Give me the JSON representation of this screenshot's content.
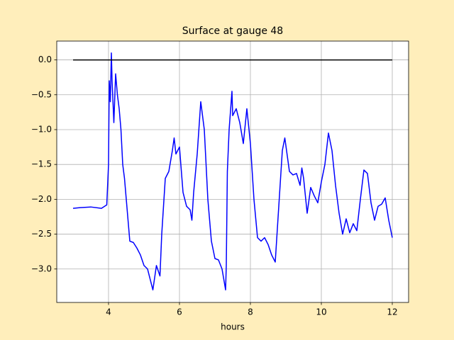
{
  "chart_data": {
    "type": "line",
    "title": "Surface at gauge 48",
    "xlabel": "hours",
    "xlim": [
      2.54,
      12.46
    ],
    "ylim": [
      -3.48,
      0.27
    ],
    "grid": true,
    "xticks": [
      4,
      6,
      8,
      10,
      12
    ],
    "yticks": [
      {
        "value": 0,
        "label": "0.0"
      },
      {
        "value": -0.5,
        "label": "−0.5"
      },
      {
        "value": -1,
        "label": "−1.0"
      },
      {
        "value": -1.5,
        "label": "−1.5"
      },
      {
        "value": -2,
        "label": "−2.0"
      },
      {
        "value": -2.5,
        "label": "−2.5"
      },
      {
        "value": -3,
        "label": "−3.0"
      }
    ],
    "series": [
      {
        "color": "#0000ff",
        "x": [
          3.0,
          3.2,
          3.5,
          3.8,
          3.95,
          4.0,
          4.02,
          4.05,
          4.08,
          4.1,
          4.15,
          4.2,
          4.25,
          4.3,
          4.35,
          4.4,
          4.45,
          4.5,
          4.55,
          4.6,
          4.7,
          4.8,
          4.9,
          5.0,
          5.1,
          5.2,
          5.25,
          5.35,
          5.45,
          5.5,
          5.55,
          5.6,
          5.7,
          5.8,
          5.85,
          5.9,
          6.0,
          6.1,
          6.2,
          6.3,
          6.35,
          6.4,
          6.5,
          6.6,
          6.7,
          6.8,
          6.9,
          7.0,
          7.1,
          7.2,
          7.3,
          7.32,
          7.35,
          7.4,
          7.48,
          7.5,
          7.6,
          7.7,
          7.8,
          7.9,
          8.0,
          8.1,
          8.2,
          8.3,
          8.4,
          8.5,
          8.6,
          8.7,
          8.8,
          8.9,
          8.97,
          9.1,
          9.2,
          9.3,
          9.4,
          9.45,
          9.5,
          9.6,
          9.7,
          9.8,
          9.9,
          10.0,
          10.1,
          10.2,
          10.3,
          10.4,
          10.5,
          10.6,
          10.7,
          10.8,
          10.9,
          11.0,
          11.1,
          11.2,
          11.3,
          11.4,
          11.5,
          11.6,
          11.7,
          11.8,
          11.9,
          12.0
        ],
        "values": [
          -2.13,
          -2.12,
          -2.11,
          -2.13,
          -2.08,
          -1.5,
          -0.3,
          -0.6,
          0.1,
          -0.3,
          -0.9,
          -0.2,
          -0.5,
          -0.7,
          -1.0,
          -1.5,
          -1.7,
          -2.0,
          -2.3,
          -2.6,
          -2.62,
          -2.7,
          -2.8,
          -2.95,
          -3.0,
          -3.2,
          -3.3,
          -2.95,
          -3.1,
          -2.5,
          -2.1,
          -1.7,
          -1.6,
          -1.3,
          -1.12,
          -1.35,
          -1.25,
          -1.9,
          -2.1,
          -2.15,
          -2.3,
          -1.9,
          -1.35,
          -0.6,
          -1.0,
          -2.0,
          -2.6,
          -2.85,
          -2.87,
          -3.0,
          -3.3,
          -2.95,
          -1.6,
          -1.0,
          -0.45,
          -0.8,
          -0.7,
          -0.9,
          -1.2,
          -0.7,
          -1.2,
          -2.0,
          -2.55,
          -2.6,
          -2.55,
          -2.65,
          -2.8,
          -2.9,
          -2.1,
          -1.3,
          -1.12,
          -1.6,
          -1.65,
          -1.63,
          -1.8,
          -1.55,
          -1.7,
          -2.2,
          -1.83,
          -1.95,
          -2.05,
          -1.75,
          -1.5,
          -1.05,
          -1.3,
          -1.8,
          -2.2,
          -2.5,
          -2.28,
          -2.48,
          -2.35,
          -2.45,
          -2.0,
          -1.58,
          -1.63,
          -2.05,
          -2.3,
          -2.1,
          -2.07,
          -1.98,
          -2.3,
          -2.55
        ]
      },
      {
        "color": "#000000",
        "x": [
          3,
          12
        ],
        "values": [
          0,
          0
        ]
      }
    ]
  }
}
